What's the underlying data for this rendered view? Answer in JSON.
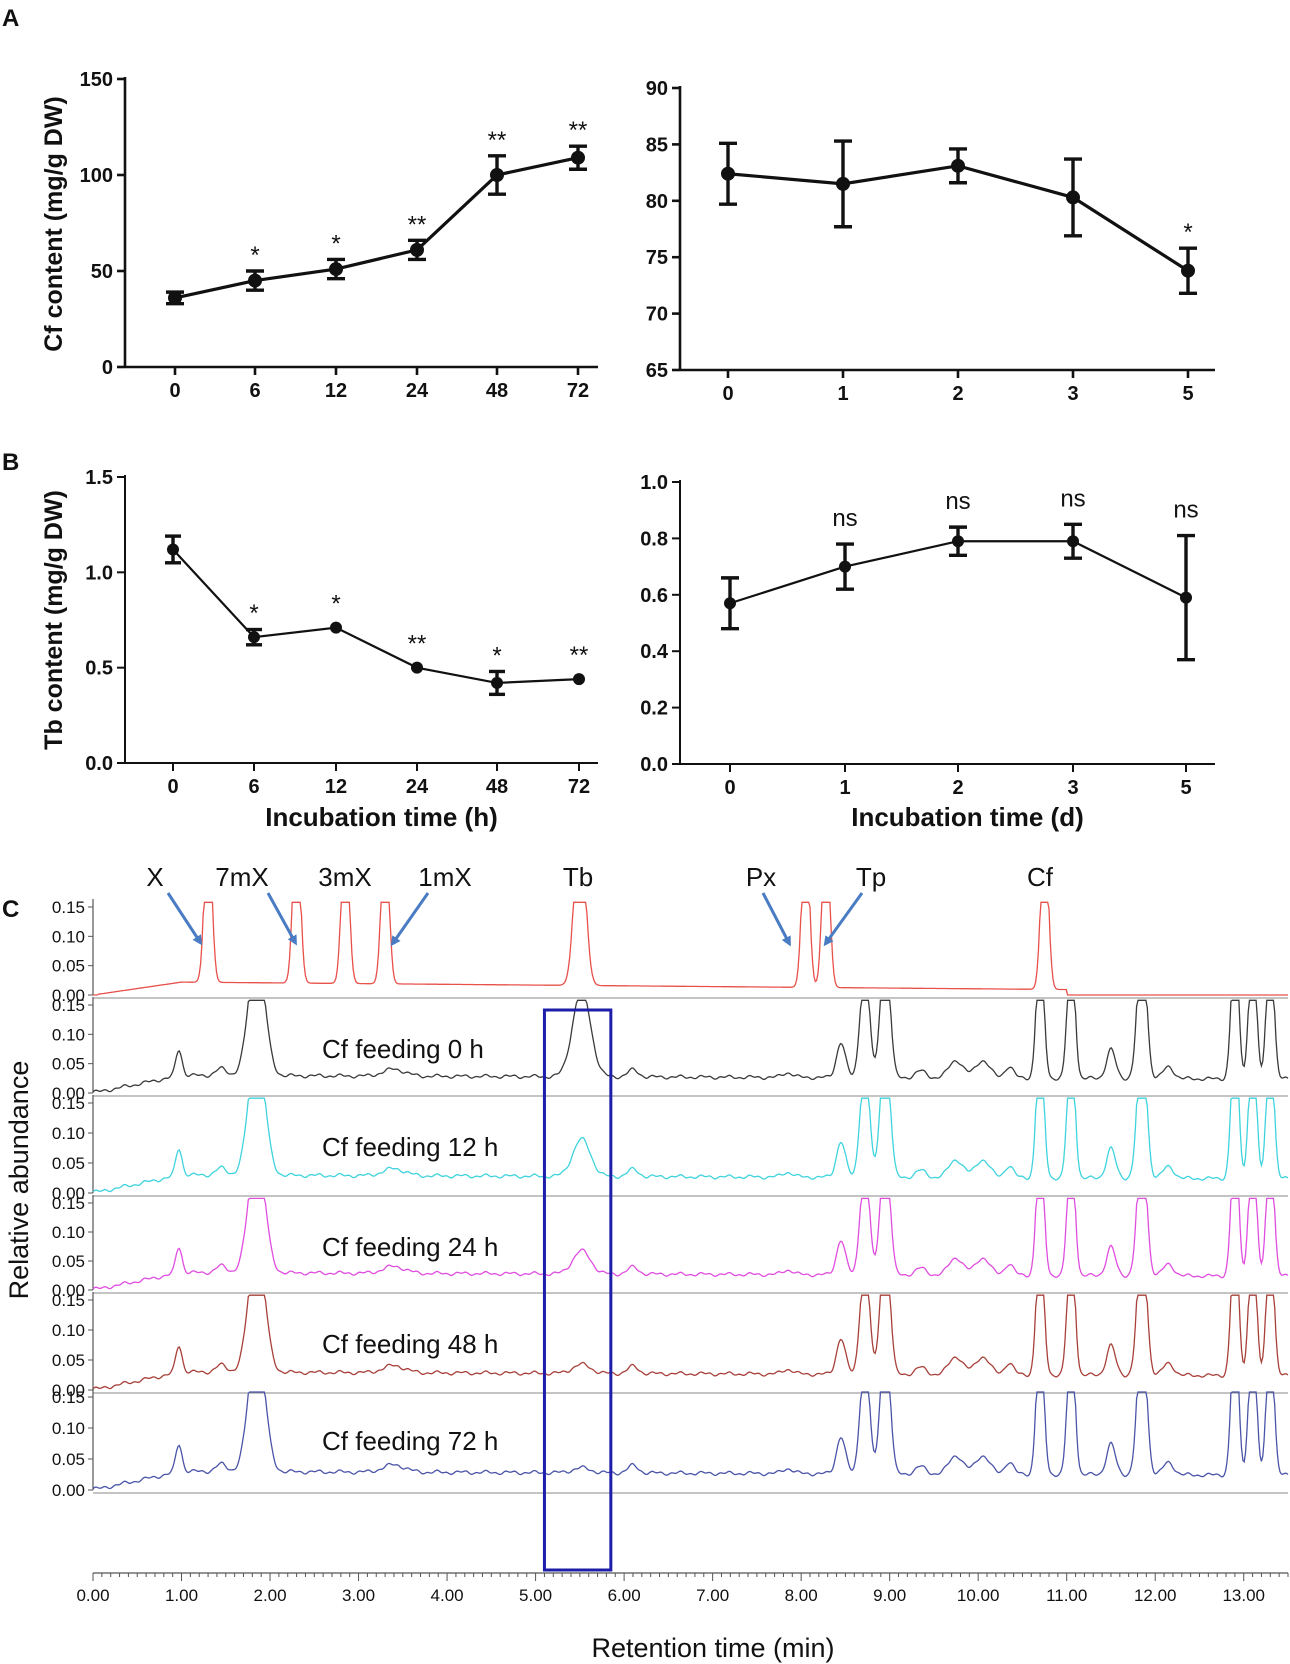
{
  "panels": {
    "A": "A",
    "B": "B",
    "C": "C"
  },
  "chart_data": [
    {
      "id": "A-left",
      "type": "line",
      "panel": "A",
      "categories": [
        "0",
        "6",
        "12",
        "24",
        "48",
        "72"
      ],
      "values": [
        36,
        45,
        51,
        61,
        100,
        109
      ],
      "errors": [
        3,
        5,
        5,
        5,
        10,
        6
      ],
      "significance": [
        "",
        "*",
        "*",
        "**",
        "**",
        "**"
      ],
      "ylabel": "Cf content (mg/g DW)",
      "xlabel": "",
      "ylim": [
        0,
        150
      ],
      "yticks": [
        "0",
        "50",
        "100",
        "150"
      ]
    },
    {
      "id": "A-right",
      "type": "line",
      "panel": "A",
      "categories": [
        "0",
        "1",
        "2",
        "3",
        "5"
      ],
      "values": [
        82.4,
        81.5,
        83.1,
        80.3,
        73.8
      ],
      "errors": [
        2.7,
        3.8,
        1.5,
        3.4,
        2.0
      ],
      "significance": [
        "",
        "",
        "",
        "",
        "*"
      ],
      "ylabel": "",
      "xlabel": "",
      "ylim": [
        65,
        90
      ],
      "yticks": [
        "65",
        "70",
        "75",
        "80",
        "85",
        "90"
      ]
    },
    {
      "id": "B-left",
      "type": "line",
      "panel": "B",
      "categories": [
        "0",
        "6",
        "12",
        "24",
        "48",
        "72"
      ],
      "values": [
        1.12,
        0.66,
        0.71,
        0.5,
        0.42,
        0.44
      ],
      "errors": [
        0.07,
        0.04,
        0.01,
        0.01,
        0.06,
        0.01
      ],
      "significance": [
        "",
        "*",
        "*",
        "**",
        "*",
        "**"
      ],
      "ylabel": "Tb content (mg/g DW)",
      "xlabel": "Incubation time (h)",
      "ylim": [
        0,
        1.5
      ],
      "yticks": [
        "0.0",
        "0.5",
        "1.0",
        "1.5"
      ]
    },
    {
      "id": "B-right",
      "type": "line",
      "panel": "B",
      "categories": [
        "0",
        "1",
        "2",
        "3",
        "5"
      ],
      "values": [
        0.57,
        0.7,
        0.79,
        0.79,
        0.59
      ],
      "errors": [
        0.09,
        0.08,
        0.05,
        0.06,
        0.22
      ],
      "significance": [
        "",
        "ns",
        "ns",
        "ns",
        "ns"
      ],
      "ylabel": "",
      "xlabel": "Incubation time (d)",
      "ylim": [
        0,
        1.0
      ],
      "yticks": [
        "0.0",
        "0.2",
        "0.4",
        "0.6",
        "0.8",
        "1.0"
      ]
    },
    {
      "id": "C",
      "type": "line",
      "panel": "C",
      "xlabel": "Retention time (min)",
      "ylabel": "Relative abundance",
      "xlim": [
        0,
        13.5
      ],
      "ylim": [
        0,
        0.15
      ],
      "xticks": [
        "0.00",
        "1.00",
        "2.00",
        "3.00",
        "4.00",
        "5.00",
        "6.00",
        "7.00",
        "8.00",
        "9.00",
        "10.00",
        "11.00",
        "12.00",
        "13.00"
      ],
      "yticks": [
        "0.00",
        "0.05",
        "0.10",
        "0.15"
      ],
      "highlight_window_min": [
        5.1,
        5.85
      ],
      "standard_peaks": [
        {
          "name": "X",
          "rt": 1.3
        },
        {
          "name": "7mX",
          "rt": 2.35
        },
        {
          "name": "3mX",
          "rt": 2.85
        },
        {
          "name": "1mX",
          "rt": 3.3
        },
        {
          "name": "Tb",
          "rt": 5.5
        },
        {
          "name": "Px",
          "rt": 8.05
        },
        {
          "name": "Tp",
          "rt": 8.25
        },
        {
          "name": "Cf",
          "rt": 10.75
        }
      ],
      "series": [
        {
          "name": "Standards",
          "label": "",
          "color": "#e8504a"
        },
        {
          "name": "Cf feeding 0 h",
          "label": "Cf feeding 0 h",
          "color": "#3a3a3a",
          "tb_peak": 0.15
        },
        {
          "name": "Cf feeding 12 h",
          "label": "Cf feeding 12 h",
          "color": "#3fd3dd",
          "tb_peak": 0.062
        },
        {
          "name": "Cf feeding 24 h",
          "label": "Cf feeding 24 h",
          "color": "#e04ee0",
          "tb_peak": 0.04
        },
        {
          "name": "Cf feeding 48 h",
          "label": "Cf feeding 48 h",
          "color": "#a8403a",
          "tb_peak": 0.015
        },
        {
          "name": "Cf feeding 72 h",
          "label": "Cf feeding 72 h",
          "color": "#4a54a8",
          "tb_peak": 0.008
        }
      ]
    }
  ]
}
